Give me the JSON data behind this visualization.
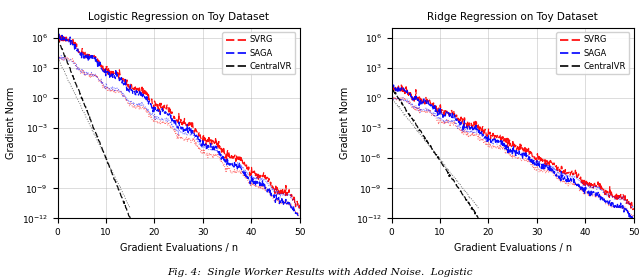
{
  "left_title": "Logistic Regression on Toy Dataset",
  "right_title": "Ridge Regression on Toy Dataset",
  "xlabel": "Gradient Evaluations / n",
  "ylabel": "Gradient Norm",
  "ylim": [
    1e-12,
    10000000.0
  ],
  "xlim": [
    0,
    50
  ],
  "xticks": [
    0,
    10,
    20,
    30,
    40,
    50
  ],
  "legend_labels": [
    "SVRG",
    "SAGA",
    "CentralVR"
  ],
  "color_svrg": "#FF0000",
  "color_saga": "#0000FF",
  "color_cvr": "#000000",
  "caption": "Fig. 4:  Single Worker Results with Added Noise.  Logistic"
}
